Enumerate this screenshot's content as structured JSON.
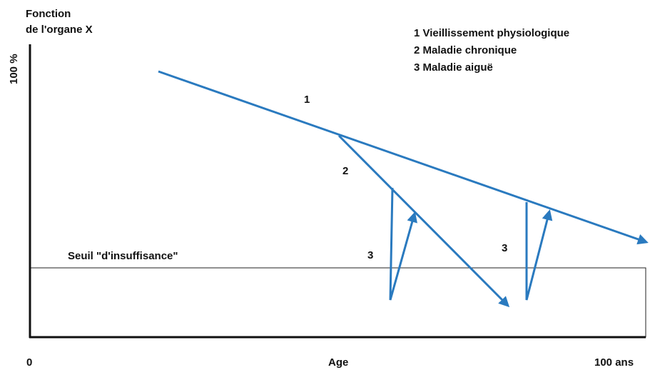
{
  "y_axis": {
    "title": [
      "Fonction",
      "de l'organe X"
    ],
    "top_label": "100 %"
  },
  "x_axis": {
    "start": "0",
    "title": "Age",
    "end": "100 ans"
  },
  "legend": [
    "1 Vieillissement physiologique",
    "2 Maladie chronique",
    "3 Maladie aiguë"
  ],
  "curve_labels": [
    "1",
    "2",
    "3",
    "3"
  ],
  "threshold": {
    "label": "Seuil \"d'insuffisance\""
  }
}
